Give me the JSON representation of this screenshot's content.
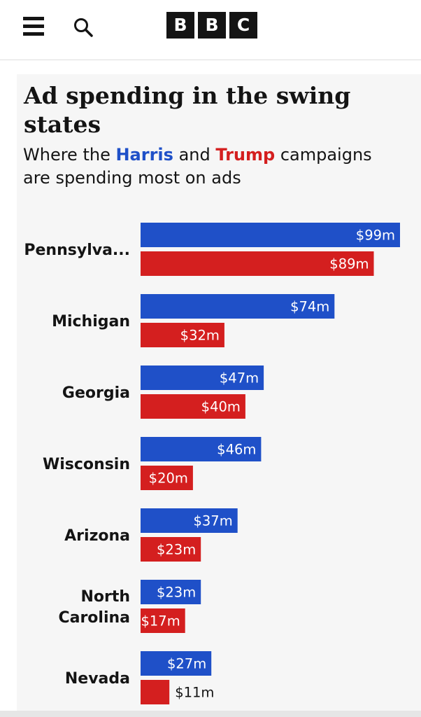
{
  "header": {
    "logo_letters": [
      "B",
      "B",
      "C"
    ],
    "icons": [
      "menu-icon",
      "search-icon"
    ]
  },
  "colors": {
    "harris": "#1f50c8",
    "trump": "#d41f1f",
    "text": "#141414",
    "panel": "#f6f6f6"
  },
  "chart_data": {
    "type": "bar",
    "orientation": "horizontal",
    "title": "Ad spending in the swing states",
    "subtitle": {
      "before": "Where the ",
      "harris": "Harris",
      "middle": " and ",
      "trump": "Trump",
      "after": " campaigns are spending most on ads"
    },
    "unit_prefix": "$",
    "unit_suffix": "m",
    "categories": [
      [
        "Pennsylva..."
      ],
      [
        "Michigan"
      ],
      [
        "Georgia"
      ],
      [
        "Wisconsin"
      ],
      [
        "Arizona"
      ],
      [
        "North",
        "Carolina"
      ],
      [
        "Nevada"
      ]
    ],
    "series": [
      {
        "key": "harris",
        "values": [
          99,
          74,
          47,
          46,
          37,
          23,
          27
        ]
      },
      {
        "key": "trump",
        "values": [
          89,
          32,
          40,
          20,
          23,
          17,
          11
        ]
      }
    ],
    "value_labels": {
      "harris": [
        "$99m",
        "$74m",
        "$47m",
        "$46m",
        "$37m",
        "$23m",
        "$27m"
      ],
      "trump": [
        "$89m",
        "$32m",
        "$40m",
        "$20m",
        "$23m",
        "$17m",
        "$11m"
      ]
    },
    "xlim": [
      0,
      99
    ],
    "grid": false,
    "legend": "inline-subtitle"
  }
}
